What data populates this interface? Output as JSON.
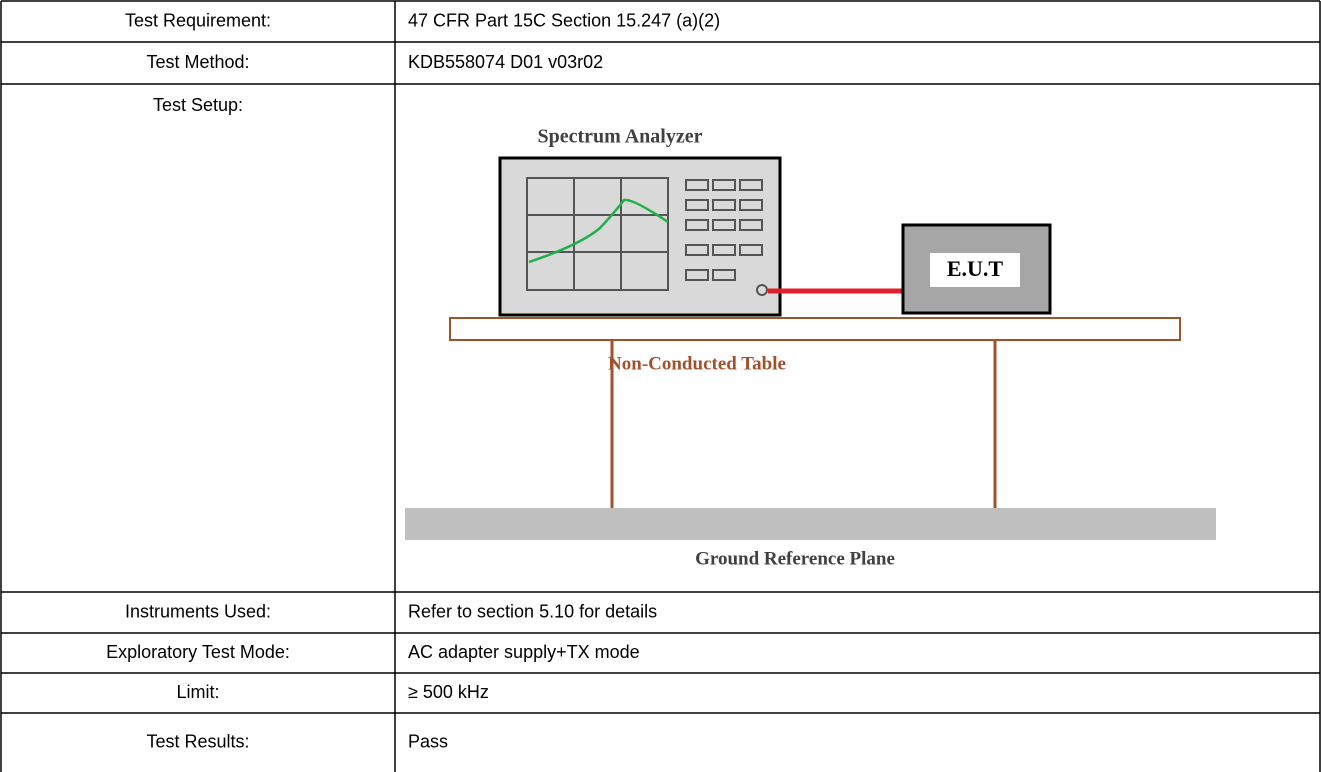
{
  "rows": [
    {
      "label": "Test Requirement:",
      "value": "47 CFR Part 15C Section 15.247 (a)(2)"
    },
    {
      "label": "Test Method:",
      "value": "KDB558074 D01 v03r02"
    },
    {
      "label": "Test Setup:"
    },
    {
      "label": "Instruments Used:",
      "value": "Refer to section 5.10 for details"
    },
    {
      "label": "Exploratory Test Mode:",
      "value": "AC adapter supply+TX mode"
    },
    {
      "label": "Limit:",
      "value": "≥ 500 kHz"
    },
    {
      "label": "Test Results:",
      "value": "Pass"
    }
  ],
  "diagram": {
    "instrument": "Spectrum Analyzer",
    "eut": "E.U.T",
    "table": "Non-Conducted Table",
    "ground": "Ground Reference Plane"
  }
}
